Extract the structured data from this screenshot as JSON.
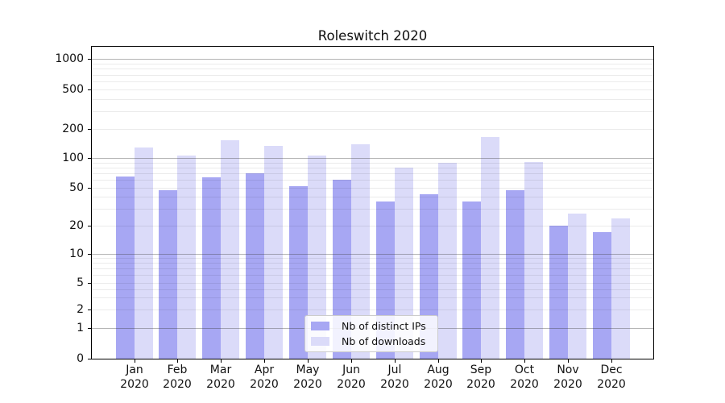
{
  "chart_data": {
    "type": "bar",
    "title": "Roleswitch 2020",
    "categories": [
      "Jan 2020",
      "Feb 2020",
      "Mar 2020",
      "Apr 2020",
      "May 2020",
      "Jun 2020",
      "Jul 2020",
      "Aug 2020",
      "Sep 2020",
      "Oct 2020",
      "Nov 2020",
      "Dec 2020"
    ],
    "series": [
      {
        "name": "Nb of distinct IPs",
        "color": "#a7a7f3",
        "values": [
          65,
          47,
          64,
          70,
          52,
          60,
          36,
          43,
          36,
          47,
          20,
          17
        ]
      },
      {
        "name": "Nb of downloads",
        "color": "#dbdbf9",
        "values": [
          128,
          106,
          152,
          133,
          105,
          139,
          80,
          89,
          166,
          91,
          27,
          24
        ]
      }
    ],
    "xlabel": "",
    "ylabel": "",
    "yscale": "symlog",
    "yticks": [
      0,
      1,
      2,
      5,
      10,
      20,
      50,
      100,
      200,
      500,
      1000
    ],
    "ylim": [
      0,
      1300
    ],
    "grid": "horizontal major and minor, drawn over bars",
    "legend_position": "lower center"
  }
}
